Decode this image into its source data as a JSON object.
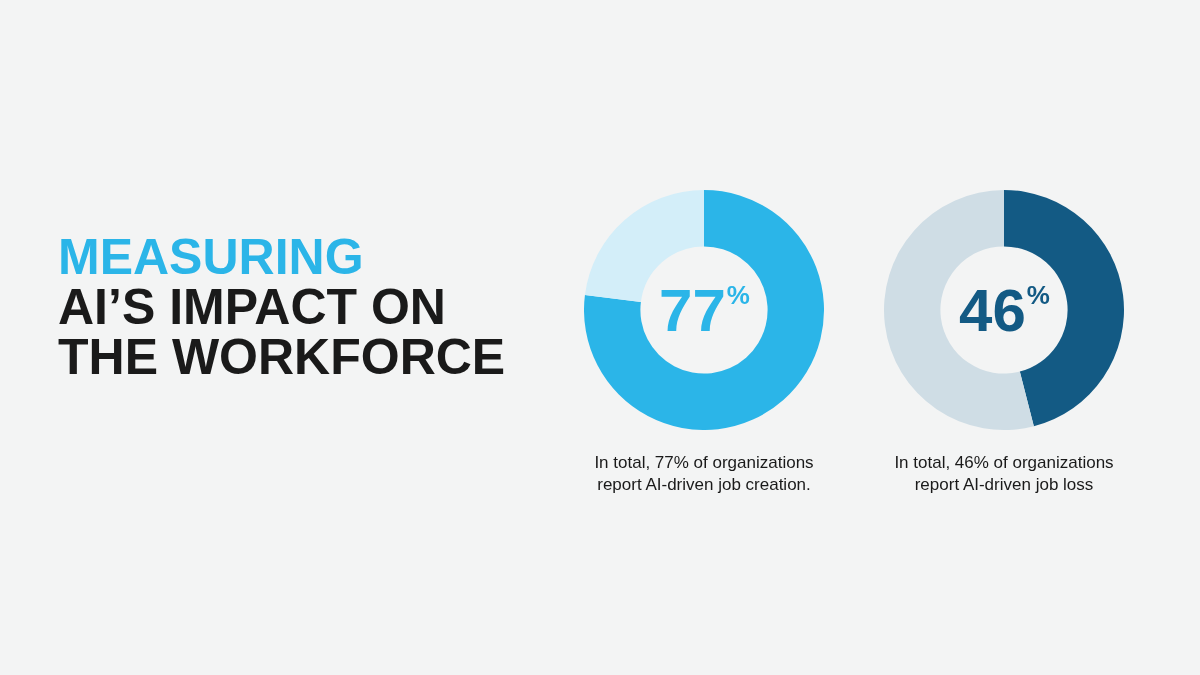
{
  "chart_data": [
    {
      "type": "other",
      "title": "MEASURING",
      "subtitle": "AI’S IMPACT ON THE WORKFORCE"
    },
    {
      "type": "donut",
      "categories": [
        null,
        null
      ],
      "values": [
        77,
        23
      ],
      "colors": [
        "#2bb5e8",
        "#d3eef9"
      ],
      "value_labels": [
        "77%",
        null
      ],
      "annotations": [
        "In total, 77% of organizations report AI-driven job creation."
      ]
    },
    {
      "type": "donut",
      "categories": [
        null,
        null
      ],
      "values": [
        46,
        54
      ],
      "colors": [
        "#135a84",
        "#cfdde5"
      ],
      "value_labels": [
        "46%",
        null
      ],
      "annotations": [
        "In total, 46% of organizations report AI-driven job loss"
      ]
    }
  ]
}
